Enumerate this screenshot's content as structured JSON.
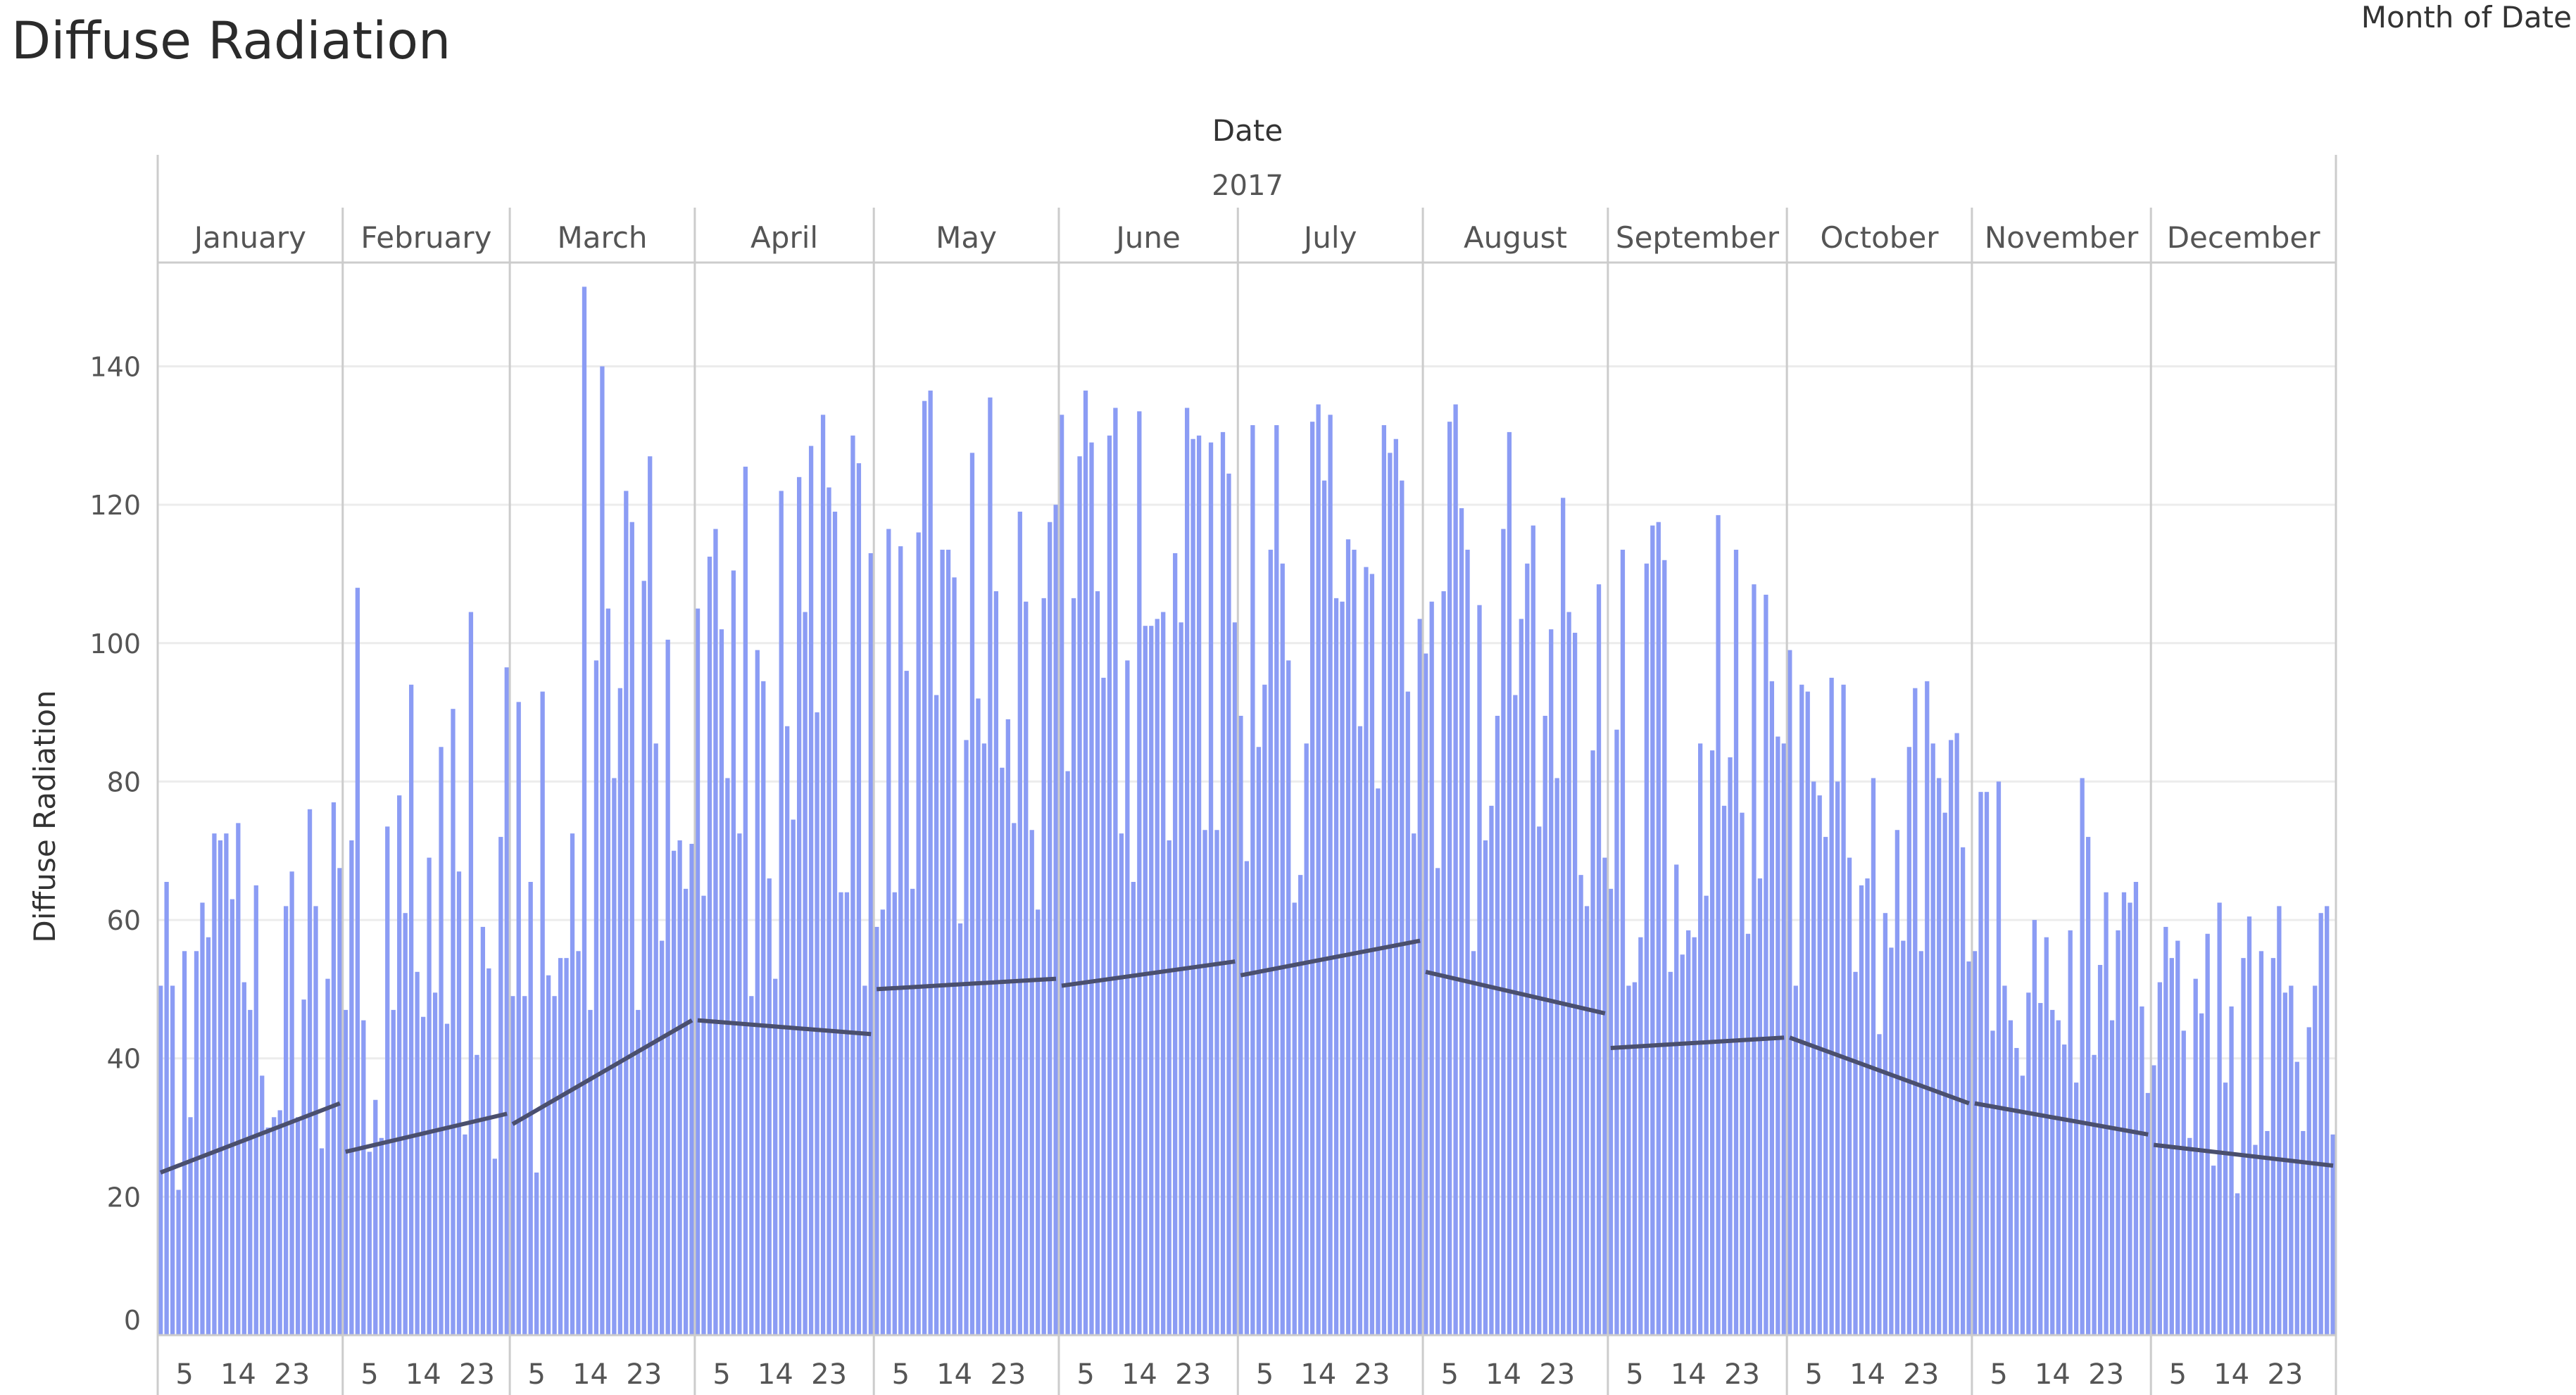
{
  "chart_data": {
    "type": "bar",
    "title": "Diffuse Radiation",
    "legend_title": "Month of Date",
    "column_header": "Date",
    "year": "2017",
    "ylabel": "Diffuse Radiation",
    "ylim": [
      0,
      155
    ],
    "yticks": [
      0,
      20,
      40,
      60,
      80,
      100,
      120,
      140
    ],
    "xtick_days": [
      5,
      14,
      23
    ],
    "grid": true,
    "bar_color": "#8b9cf4",
    "trend_color": "#4a4f6e",
    "months": [
      {
        "name": "January",
        "days": 31,
        "trend": [
          23.5,
          33.5
        ],
        "values": [
          50.5,
          65.5,
          50.5,
          21,
          55.5,
          31.5,
          55.5,
          62.5,
          57.5,
          72.5,
          71.5,
          72.5,
          63,
          74,
          51,
          47,
          65,
          37.5,
          30,
          31.5,
          32.5,
          62,
          67,
          31.5,
          48.5,
          76,
          62,
          27,
          51.5,
          77,
          67.5
        ]
      },
      {
        "name": "February",
        "days": 28,
        "trend": [
          26.5,
          32
        ],
        "values": [
          47,
          71.5,
          108,
          45.5,
          26.5,
          34,
          28.5,
          73.5,
          47,
          78,
          61,
          94,
          52.5,
          46,
          69,
          49.5,
          85,
          45,
          90.5,
          67,
          29,
          104.5,
          40.5,
          59,
          53,
          25.5,
          72,
          96.5
        ]
      },
      {
        "name": "March",
        "days": 31,
        "trend": [
          30.5,
          45.5
        ],
        "values": [
          49,
          91.5,
          49,
          65.5,
          23.5,
          93,
          52,
          49,
          54.5,
          54.5,
          72.5,
          55.5,
          151.5,
          47,
          97.5,
          140,
          105,
          80.5,
          93.5,
          122,
          117.5,
          47,
          109,
          127,
          85.5,
          57,
          100.5,
          70,
          71.5,
          64.5,
          71
        ]
      },
      {
        "name": "April",
        "days": 30,
        "trend": [
          45.5,
          43.5
        ],
        "values": [
          105,
          63.5,
          112.5,
          116.5,
          102,
          80.5,
          110.5,
          72.5,
          125.5,
          49,
          99,
          94.5,
          66,
          51.5,
          122,
          88,
          74.5,
          124,
          104.5,
          128.5,
          90,
          133,
          122.5,
          119,
          64,
          64,
          130,
          126,
          50.5,
          113
        ]
      },
      {
        "name": "May",
        "days": 31,
        "trend": [
          50,
          51.5
        ],
        "values": [
          59,
          61.5,
          116.5,
          64,
          114,
          96,
          64.5,
          116,
          135,
          136.5,
          92.5,
          113.5,
          113.5,
          109.5,
          59.5,
          86,
          127.5,
          92,
          85.5,
          135.5,
          107.5,
          82,
          89,
          74,
          119,
          106,
          73,
          61.5,
          106.5,
          117.5,
          120
        ]
      },
      {
        "name": "June",
        "days": 30,
        "trend": [
          50.5,
          54
        ],
        "values": [
          133,
          81.5,
          106.5,
          127,
          136.5,
          129,
          107.5,
          95,
          130,
          134,
          72.5,
          97.5,
          65.5,
          133.5,
          102.5,
          102.5,
          103.5,
          104.5,
          71.5,
          113,
          103,
          134,
          129.5,
          130,
          73,
          129,
          73,
          130.5,
          124.5,
          103
        ]
      },
      {
        "name": "July",
        "days": 31,
        "trend": [
          52,
          57
        ],
        "values": [
          89.5,
          68.5,
          131.5,
          85,
          94,
          113.5,
          131.5,
          111.5,
          97.5,
          62.5,
          66.5,
          85.5,
          132,
          134.5,
          123.5,
          133,
          106.5,
          106,
          115,
          113.5,
          88,
          111,
          110,
          79,
          131.5,
          127.5,
          129.5,
          123.5,
          93,
          72.5,
          103.5
        ]
      },
      {
        "name": "August",
        "days": 31,
        "trend": [
          52.5,
          46.5
        ],
        "values": [
          98.5,
          106,
          67.5,
          107.5,
          132,
          134.5,
          119.5,
          113.5,
          55.5,
          105.5,
          71.5,
          76.5,
          89.5,
          116.5,
          130.5,
          92.5,
          103.5,
          111.5,
          117,
          73.5,
          89.5,
          102,
          80.5,
          121,
          104.5,
          101.5,
          66.5,
          62,
          84.5,
          108.5,
          69
        ]
      },
      {
        "name": "September",
        "days": 30,
        "trend": [
          41.5,
          43
        ],
        "values": [
          64.5,
          87.5,
          113.5,
          50.5,
          51,
          57.5,
          111.5,
          117,
          117.5,
          112,
          52.5,
          68,
          55,
          58.5,
          57.5,
          85.5,
          63.5,
          84.5,
          118.5,
          76.5,
          83.5,
          113.5,
          75.5,
          58,
          108.5,
          66,
          107,
          94.5,
          86.5,
          85.5
        ]
      },
      {
        "name": "October",
        "days": 31,
        "trend": [
          43,
          33.5
        ],
        "values": [
          99,
          50.5,
          94,
          93,
          80,
          78,
          72,
          95,
          80,
          94,
          69,
          52.5,
          65,
          66,
          80.5,
          43.5,
          61,
          56,
          73,
          57,
          85,
          93.5,
          55.5,
          94.5,
          85.5,
          80.5,
          75.5,
          86,
          87,
          70.5,
          54
        ]
      },
      {
        "name": "November",
        "days": 30,
        "trend": [
          33.5,
          29
        ],
        "values": [
          55.5,
          78.5,
          78.5,
          44,
          80,
          50.5,
          45.5,
          41.5,
          37.5,
          49.5,
          60,
          48,
          57.5,
          47,
          45.5,
          42,
          58.5,
          36.5,
          80.5,
          72,
          40.5,
          53.5,
          64,
          45.5,
          58.5,
          64,
          62.5,
          65.5,
          47.5,
          35
        ]
      },
      {
        "name": "December",
        "days": 31,
        "trend": [
          27.5,
          24.5
        ],
        "values": [
          39,
          51,
          59,
          54.5,
          57,
          44,
          28.5,
          51.5,
          46.5,
          58,
          24.5,
          62.5,
          36.5,
          47.5,
          20.5,
          54.5,
          60.5,
          27.5,
          55.5,
          29.5,
          54.5,
          62,
          49.5,
          50.5,
          39.5,
          29.5,
          44.5,
          50.5,
          61,
          62,
          29
        ]
      }
    ]
  }
}
